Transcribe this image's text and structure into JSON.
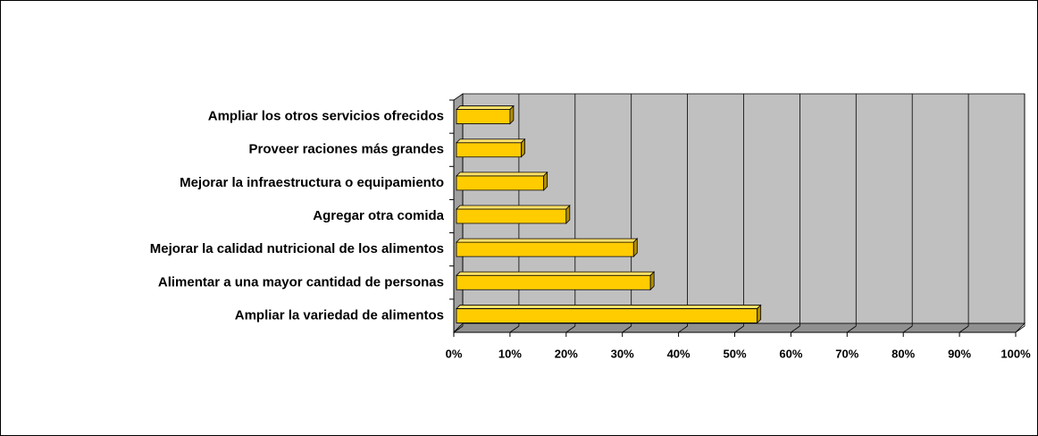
{
  "chart_data": {
    "type": "bar",
    "orientation": "horizontal",
    "three_d": true,
    "categories": [
      "Ampliar los otros servicios ofrecidos",
      "Proveer raciones más grandes",
      "Mejorar la infraestructura o equipamiento",
      "Agregar otra comida",
      "Mejorar la calidad nutricional de los alimentos",
      "Alimentar a una mayor cantidad de personas",
      "Ampliar la variedad de alimentos"
    ],
    "values": [
      10,
      12,
      16,
      20,
      32,
      35,
      54
    ],
    "color": "#ffcc00",
    "xlim": [
      0,
      100
    ],
    "xticks": [
      {
        "value": 0,
        "label": "0%"
      },
      {
        "value": 10,
        "label": "10%"
      },
      {
        "value": 20,
        "label": "20%"
      },
      {
        "value": 30,
        "label": "30%"
      },
      {
        "value": 40,
        "label": "40%"
      },
      {
        "value": 50,
        "label": "50%"
      },
      {
        "value": 60,
        "label": "60%"
      },
      {
        "value": 70,
        "label": "70%"
      },
      {
        "value": 80,
        "label": "80%"
      },
      {
        "value": 90,
        "label": "90%"
      },
      {
        "value": 100,
        "label": "100%"
      }
    ],
    "grid": true
  }
}
